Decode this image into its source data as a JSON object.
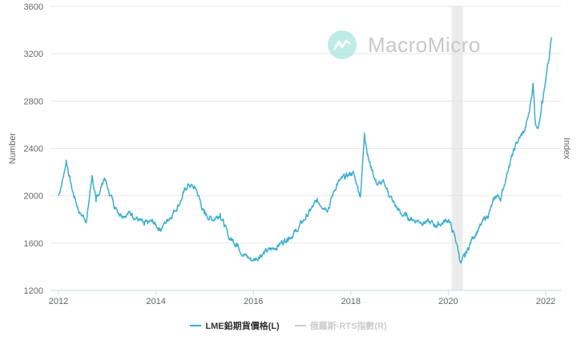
{
  "logo": {
    "text": "MacroMicro"
  },
  "chart_data": {
    "type": "line",
    "title": "",
    "ylabel": "Number",
    "ylabel_right": "Index",
    "ylim": [
      1200,
      3600
    ],
    "yticks": [
      1200,
      1600,
      2000,
      2400,
      2800,
      3200,
      3600
    ],
    "xlim": [
      2011.85,
      2022.3
    ],
    "xticks": [
      2012,
      2014,
      2016,
      2018,
      2020,
      2022
    ],
    "grid": true,
    "shaded_region": [
      2020.07,
      2020.3
    ],
    "legend_position": "bottom",
    "series": [
      {
        "name": "LME鉛期貨價格(L)",
        "color": "#3aaed0",
        "visible": true,
        "x": [
          2012.0,
          2012.12,
          2012.16,
          2012.28,
          2012.44,
          2012.58,
          2012.69,
          2012.77,
          2012.94,
          2013.02,
          2013.18,
          2013.27,
          2013.51,
          2013.76,
          2013.92,
          2014.09,
          2014.25,
          2014.5,
          2014.66,
          2014.83,
          2014.99,
          2015.16,
          2015.32,
          2015.49,
          2015.65,
          2015.82,
          2015.98,
          2016.14,
          2016.39,
          2016.56,
          2016.72,
          2016.88,
          2017.13,
          2017.3,
          2017.54,
          2017.71,
          2017.87,
          2018.04,
          2018.12,
          2018.2,
          2018.28,
          2018.37,
          2018.45,
          2018.53,
          2018.69,
          2018.86,
          2019.02,
          2019.27,
          2019.52,
          2019.76,
          2020.01,
          2020.17,
          2020.26,
          2020.34,
          2020.5,
          2020.67,
          2020.83,
          2020.99,
          2021.08,
          2021.24,
          2021.41,
          2021.57,
          2021.66,
          2021.74,
          2021.79,
          2021.86,
          2021.92,
          2021.99,
          2022.07,
          2022.12
        ],
        "y": [
          2000,
          2200,
          2300,
          2050,
          1850,
          1800,
          2170,
          1950,
          2150,
          2050,
          1900,
          1850,
          1850,
          1750,
          1780,
          1720,
          1800,
          1950,
          2100,
          2050,
          1850,
          1800,
          1850,
          1650,
          1600,
          1500,
          1450,
          1500,
          1550,
          1600,
          1650,
          1700,
          1850,
          1950,
          1900,
          2100,
          2150,
          2200,
          2100,
          2000,
          2530,
          2300,
          2200,
          2100,
          2100,
          1950,
          1850,
          1800,
          1780,
          1750,
          1800,
          1600,
          1430,
          1480,
          1650,
          1750,
          1850,
          2000,
          1980,
          2250,
          2450,
          2550,
          2700,
          2950,
          2600,
          2600,
          2800,
          2950,
          3150,
          3340
        ]
      },
      {
        "name": "俄羅斯-RTS指數(R)",
        "color": "#cccccc",
        "visible": false,
        "x": [],
        "y": []
      }
    ]
  }
}
